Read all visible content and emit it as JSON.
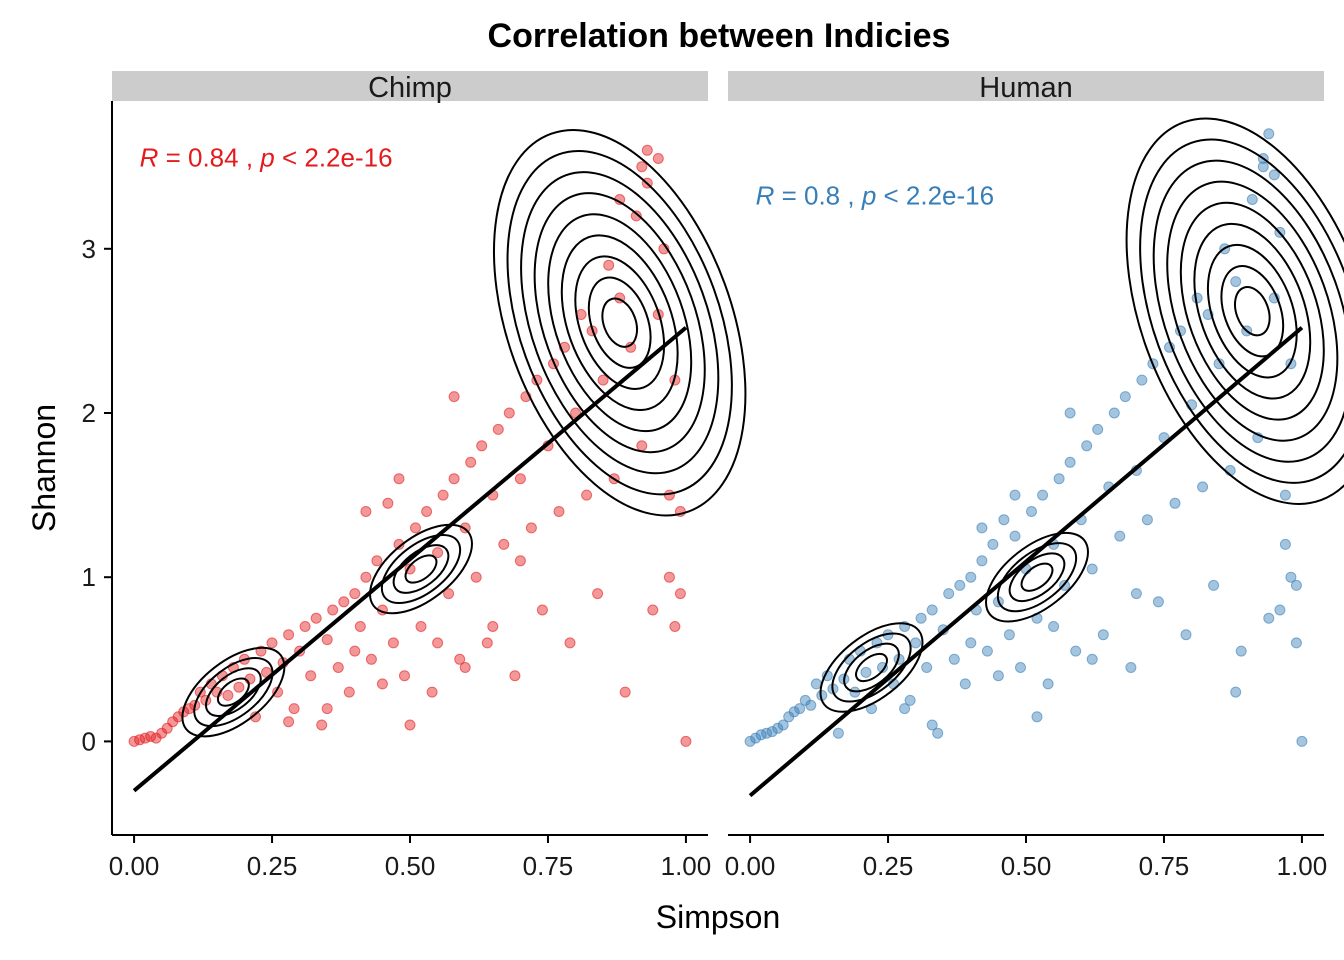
{
  "chart_data": {
    "type": "scatter",
    "title": "Correlation between Indicies",
    "xlabel": "Simpson",
    "ylabel": "Shannon",
    "xlim": [
      -0.04,
      1.04
    ],
    "ylim": [
      -0.57,
      3.9
    ],
    "x_ticks": [
      0,
      0.25,
      0.5,
      0.75,
      1
    ],
    "x_tick_labels": [
      "0.00",
      "0.25",
      "0.50",
      "0.75",
      "1.00"
    ],
    "y_ticks": [
      0,
      1,
      2,
      3
    ],
    "y_tick_labels": [
      "0",
      "1",
      "2",
      "3"
    ],
    "grid": false,
    "legend": "none",
    "facets": [
      {
        "strip": "Chimp",
        "color": "#E41A1C",
        "annotation": {
          "r_label": "R",
          "r_text": " = 0.84 , ",
          "p_label": "p",
          "p_text": " < 2.2e-16"
        },
        "annotation_pos": {
          "x": 0.01,
          "y": 3.5
        },
        "fit": {
          "intercept": -0.3,
          "slope": 2.82
        },
        "density_peaks": [
          {
            "x": 0.88,
            "y": 2.55
          },
          {
            "x": 0.52,
            "y": 1.05
          },
          {
            "x": 0.18,
            "y": 0.3
          }
        ],
        "points": [
          [
            0.0,
            0.0
          ],
          [
            0.01,
            0.01
          ],
          [
            0.02,
            0.02
          ],
          [
            0.03,
            0.03
          ],
          [
            0.04,
            0.02
          ],
          [
            0.05,
            0.05
          ],
          [
            0.06,
            0.08
          ],
          [
            0.07,
            0.12
          ],
          [
            0.08,
            0.15
          ],
          [
            0.09,
            0.18
          ],
          [
            0.1,
            0.2
          ],
          [
            0.11,
            0.22
          ],
          [
            0.12,
            0.3
          ],
          [
            0.13,
            0.25
          ],
          [
            0.14,
            0.35
          ],
          [
            0.15,
            0.3
          ],
          [
            0.16,
            0.4
          ],
          [
            0.17,
            0.28
          ],
          [
            0.18,
            0.45
          ],
          [
            0.19,
            0.33
          ],
          [
            0.2,
            0.5
          ],
          [
            0.21,
            0.38
          ],
          [
            0.22,
            0.15
          ],
          [
            0.23,
            0.55
          ],
          [
            0.24,
            0.42
          ],
          [
            0.25,
            0.6
          ],
          [
            0.26,
            0.3
          ],
          [
            0.27,
            0.48
          ],
          [
            0.28,
            0.65
          ],
          [
            0.29,
            0.2
          ],
          [
            0.3,
            0.55
          ],
          [
            0.31,
            0.7
          ],
          [
            0.32,
            0.4
          ],
          [
            0.33,
            0.75
          ],
          [
            0.34,
            0.1
          ],
          [
            0.35,
            0.62
          ],
          [
            0.36,
            0.8
          ],
          [
            0.37,
            0.45
          ],
          [
            0.38,
            0.85
          ],
          [
            0.39,
            0.3
          ],
          [
            0.4,
            0.9
          ],
          [
            0.41,
            0.7
          ],
          [
            0.42,
            1.0
          ],
          [
            0.43,
            0.5
          ],
          [
            0.44,
            1.1
          ],
          [
            0.45,
            0.8
          ],
          [
            0.46,
            1.45
          ],
          [
            0.47,
            0.6
          ],
          [
            0.48,
            1.2
          ],
          [
            0.49,
            0.4
          ],
          [
            0.5,
            1.05
          ],
          [
            0.51,
            1.3
          ],
          [
            0.52,
            0.7
          ],
          [
            0.53,
            1.4
          ],
          [
            0.54,
            0.3
          ],
          [
            0.55,
            1.15
          ],
          [
            0.56,
            1.5
          ],
          [
            0.57,
            0.9
          ],
          [
            0.58,
            1.6
          ],
          [
            0.59,
            0.5
          ],
          [
            0.6,
            1.3
          ],
          [
            0.61,
            1.7
          ],
          [
            0.62,
            1.0
          ],
          [
            0.63,
            1.8
          ],
          [
            0.64,
            0.6
          ],
          [
            0.65,
            1.5
          ],
          [
            0.66,
            1.9
          ],
          [
            0.67,
            1.2
          ],
          [
            0.68,
            2.0
          ],
          [
            0.69,
            0.4
          ],
          [
            0.7,
            1.6
          ],
          [
            0.71,
            2.1
          ],
          [
            0.72,
            1.3
          ],
          [
            0.73,
            2.2
          ],
          [
            0.74,
            0.8
          ],
          [
            0.75,
            1.8
          ],
          [
            0.76,
            2.3
          ],
          [
            0.77,
            1.4
          ],
          [
            0.78,
            2.4
          ],
          [
            0.79,
            0.6
          ],
          [
            0.8,
            2.0
          ],
          [
            0.81,
            2.6
          ],
          [
            0.82,
            1.5
          ],
          [
            0.83,
            2.5
          ],
          [
            0.84,
            0.9
          ],
          [
            0.85,
            2.2
          ],
          [
            0.86,
            2.9
          ],
          [
            0.87,
            1.6
          ],
          [
            0.88,
            2.7
          ],
          [
            0.89,
            0.3
          ],
          [
            0.9,
            2.4
          ],
          [
            0.91,
            3.2
          ],
          [
            0.92,
            1.8
          ],
          [
            0.93,
            3.4
          ],
          [
            0.94,
            0.8
          ],
          [
            0.95,
            2.6
          ],
          [
            0.96,
            3.0
          ],
          [
            0.97,
            1.5
          ],
          [
            0.98,
            2.2
          ],
          [
            0.99,
            0.9
          ],
          [
            1.0,
            0.0
          ],
          [
            0.93,
            3.6
          ],
          [
            0.92,
            3.5
          ],
          [
            0.95,
            3.55
          ],
          [
            0.88,
            3.3
          ],
          [
            0.97,
            1.0
          ],
          [
            0.99,
            1.4
          ],
          [
            0.98,
            0.7
          ],
          [
            0.65,
            0.7
          ],
          [
            0.7,
            1.1
          ],
          [
            0.6,
            0.45
          ],
          [
            0.55,
            0.6
          ],
          [
            0.45,
            0.35
          ],
          [
            0.35,
            0.2
          ],
          [
            0.5,
            0.1
          ],
          [
            0.28,
            0.12
          ],
          [
            0.4,
            0.55
          ],
          [
            0.58,
            2.1
          ],
          [
            0.48,
            1.6
          ],
          [
            0.42,
            1.4
          ]
        ]
      },
      {
        "strip": "Human",
        "color": "#377EB8",
        "annotation": {
          "r_label": "R",
          "r_text": " = 0.8 , ",
          "p_label": "p",
          "p_text": " < 2.2e-16"
        },
        "annotation_pos": {
          "x": 0.01,
          "y": 3.27
        },
        "fit": {
          "intercept": -0.33,
          "slope": 2.85
        },
        "density_peaks": [
          {
            "x": 0.91,
            "y": 2.62
          },
          {
            "x": 0.52,
            "y": 1.0
          },
          {
            "x": 0.22,
            "y": 0.45
          }
        ],
        "points": [
          [
            0.0,
            0.0
          ],
          [
            0.01,
            0.02
          ],
          [
            0.02,
            0.04
          ],
          [
            0.03,
            0.05
          ],
          [
            0.04,
            0.06
          ],
          [
            0.05,
            0.08
          ],
          [
            0.06,
            0.1
          ],
          [
            0.07,
            0.15
          ],
          [
            0.08,
            0.18
          ],
          [
            0.09,
            0.2
          ],
          [
            0.1,
            0.25
          ],
          [
            0.11,
            0.22
          ],
          [
            0.12,
            0.35
          ],
          [
            0.13,
            0.28
          ],
          [
            0.14,
            0.4
          ],
          [
            0.15,
            0.32
          ],
          [
            0.16,
            0.05
          ],
          [
            0.17,
            0.38
          ],
          [
            0.18,
            0.5
          ],
          [
            0.19,
            0.3
          ],
          [
            0.2,
            0.55
          ],
          [
            0.21,
            0.42
          ],
          [
            0.22,
            0.2
          ],
          [
            0.23,
            0.6
          ],
          [
            0.24,
            0.45
          ],
          [
            0.25,
            0.65
          ],
          [
            0.26,
            0.35
          ],
          [
            0.27,
            0.5
          ],
          [
            0.28,
            0.7
          ],
          [
            0.29,
            0.25
          ],
          [
            0.3,
            0.6
          ],
          [
            0.31,
            0.75
          ],
          [
            0.32,
            0.45
          ],
          [
            0.33,
            0.8
          ],
          [
            0.34,
            0.05
          ],
          [
            0.35,
            0.68
          ],
          [
            0.36,
            0.9
          ],
          [
            0.37,
            0.5
          ],
          [
            0.38,
            0.95
          ],
          [
            0.39,
            0.35
          ],
          [
            0.4,
            1.0
          ],
          [
            0.41,
            0.8
          ],
          [
            0.42,
            1.1
          ],
          [
            0.43,
            0.55
          ],
          [
            0.44,
            1.2
          ],
          [
            0.45,
            0.85
          ],
          [
            0.46,
            1.35
          ],
          [
            0.47,
            0.65
          ],
          [
            0.48,
            1.25
          ],
          [
            0.49,
            0.45
          ],
          [
            0.5,
            1.05
          ],
          [
            0.51,
            1.4
          ],
          [
            0.52,
            0.75
          ],
          [
            0.53,
            1.5
          ],
          [
            0.54,
            0.35
          ],
          [
            0.55,
            1.2
          ],
          [
            0.56,
            1.6
          ],
          [
            0.57,
            0.95
          ],
          [
            0.58,
            1.7
          ],
          [
            0.59,
            0.55
          ],
          [
            0.6,
            1.35
          ],
          [
            0.61,
            1.8
          ],
          [
            0.62,
            1.05
          ],
          [
            0.63,
            1.9
          ],
          [
            0.64,
            0.65
          ],
          [
            0.65,
            1.55
          ],
          [
            0.66,
            2.0
          ],
          [
            0.67,
            1.25
          ],
          [
            0.68,
            2.1
          ],
          [
            0.69,
            0.45
          ],
          [
            0.7,
            1.65
          ],
          [
            0.71,
            2.2
          ],
          [
            0.72,
            1.35
          ],
          [
            0.73,
            2.3
          ],
          [
            0.74,
            0.85
          ],
          [
            0.75,
            1.85
          ],
          [
            0.76,
            2.4
          ],
          [
            0.77,
            1.45
          ],
          [
            0.78,
            2.5
          ],
          [
            0.79,
            0.65
          ],
          [
            0.8,
            2.05
          ],
          [
            0.81,
            2.7
          ],
          [
            0.82,
            1.55
          ],
          [
            0.83,
            2.6
          ],
          [
            0.84,
            0.95
          ],
          [
            0.85,
            2.3
          ],
          [
            0.86,
            3.0
          ],
          [
            0.87,
            1.65
          ],
          [
            0.88,
            2.8
          ],
          [
            0.89,
            0.55
          ],
          [
            0.9,
            2.5
          ],
          [
            0.91,
            3.3
          ],
          [
            0.92,
            1.85
          ],
          [
            0.93,
            3.5
          ],
          [
            0.94,
            0.75
          ],
          [
            0.95,
            2.7
          ],
          [
            0.96,
            3.1
          ],
          [
            0.97,
            1.5
          ],
          [
            0.98,
            2.3
          ],
          [
            0.99,
            0.95
          ],
          [
            1.0,
            0.0
          ],
          [
            0.94,
            3.7
          ],
          [
            0.93,
            3.55
          ],
          [
            0.95,
            3.45
          ],
          [
            0.97,
            1.2
          ],
          [
            0.99,
            0.6
          ],
          [
            0.98,
            1.0
          ],
          [
            0.96,
            0.8
          ],
          [
            0.88,
            0.3
          ],
          [
            0.7,
            0.9
          ],
          [
            0.62,
            0.5
          ],
          [
            0.55,
            0.7
          ],
          [
            0.45,
            0.4
          ],
          [
            0.33,
            0.1
          ],
          [
            0.52,
            0.15
          ],
          [
            0.28,
            0.2
          ],
          [
            0.4,
            0.6
          ],
          [
            0.58,
            2.0
          ],
          [
            0.48,
            1.5
          ],
          [
            0.42,
            1.3
          ]
        ]
      }
    ]
  }
}
